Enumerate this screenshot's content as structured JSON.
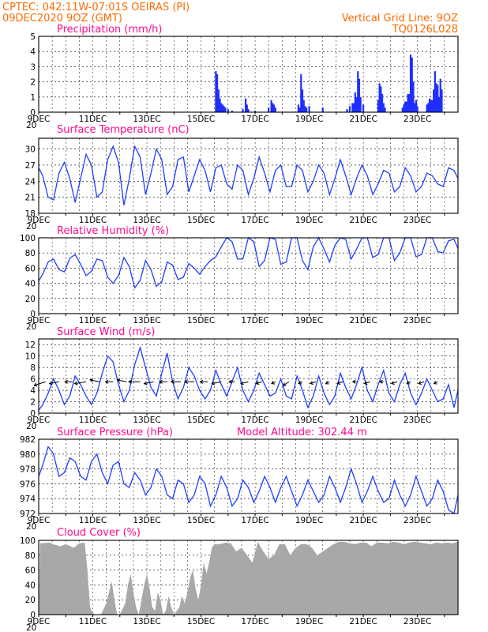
{
  "header": {
    "line1": "CPTEC:   042:11W-07:01S   OEIRAS (PI)",
    "line2": "09DEC2020 9OZ (GMT)",
    "right1": "Vertical Grid Line: 9OZ",
    "right2": "TQ0126L028"
  },
  "model_altitude_label": "Model Altitude: 302.44 m",
  "x_axis": {
    "labels": [
      "9DEC",
      "11DEC",
      "13DEC",
      "15DEC",
      "17DEC",
      "19DEC",
      "21DEC",
      "23DEC"
    ],
    "cut_label": "20"
  },
  "colors": {
    "line": "#1f3fff",
    "bar": "#1f2fff",
    "cloud": "#a8a8a8",
    "header": "#ff6a00",
    "title": "#ff0a8c",
    "grid": "#000000"
  },
  "chart_data": [
    {
      "id": "precip",
      "type": "bar",
      "title": "Precipitation (mm/h)",
      "ylim": [
        0,
        5
      ],
      "yticks": [
        0,
        1,
        2,
        3,
        4,
        5
      ],
      "x_range_days": [
        9,
        24.5
      ],
      "x": [
        15.55,
        15.6,
        15.65,
        15.7,
        15.75,
        15.8,
        15.85,
        15.9,
        16.0,
        16.15,
        16.55,
        16.65,
        16.7,
        16.75,
        17.0,
        17.5,
        17.6,
        17.65,
        17.7,
        17.75,
        18.6,
        18.65,
        18.7,
        18.75,
        18.8,
        18.85,
        18.9,
        19.0,
        19.5,
        20.4,
        20.5,
        20.6,
        20.65,
        20.7,
        20.75,
        20.8,
        20.85,
        20.9,
        21.0,
        21.55,
        21.6,
        21.65,
        21.7,
        21.75,
        21.8,
        22.45,
        22.5,
        22.55,
        22.6,
        22.65,
        22.7,
        22.75,
        22.8,
        22.85,
        22.9,
        22.95,
        23.0,
        23.35,
        23.4,
        23.45,
        23.5,
        23.55,
        23.6,
        23.65,
        23.7,
        23.75,
        23.8,
        23.85,
        23.9
      ],
      "values": [
        2.7,
        2.5,
        1.5,
        0.9,
        0.6,
        0.5,
        0.4,
        0.3,
        0.2,
        0.1,
        0.2,
        0.9,
        0.5,
        0.2,
        0.1,
        0.3,
        0.8,
        0.6,
        0.5,
        0.3,
        0.5,
        0.3,
        2.5,
        1.5,
        0.8,
        0.4,
        0.3,
        0.4,
        0.3,
        0.2,
        0.4,
        0.6,
        0.6,
        1.3,
        1.0,
        2.7,
        2.2,
        1.0,
        0.5,
        0.8,
        1.9,
        1.7,
        1.2,
        0.6,
        0.3,
        0.3,
        0.5,
        0.7,
        0.7,
        1.2,
        1.2,
        3.8,
        3.6,
        2.0,
        0.6,
        0.8,
        0.4,
        0.5,
        0.6,
        0.9,
        0.8,
        0.8,
        1.5,
        2.7,
        1.9,
        1.8,
        1.0,
        2.2,
        1.5
      ]
    },
    {
      "id": "temp",
      "type": "line",
      "title": "Surface Temperature (nC)",
      "ylim": [
        18,
        32
      ],
      "yticks": [
        18,
        21,
        24,
        27,
        30
      ],
      "x_range_days": [
        9,
        24.5
      ],
      "x": [
        9.0,
        9.15,
        9.35,
        9.55,
        9.75,
        9.95,
        10.15,
        10.35,
        10.55,
        10.75,
        10.95,
        11.15,
        11.35,
        11.55,
        11.75,
        11.95,
        12.15,
        12.35,
        12.55,
        12.75,
        12.95,
        13.15,
        13.35,
        13.55,
        13.75,
        13.95,
        14.15,
        14.35,
        14.55,
        14.75,
        14.95,
        15.15,
        15.35,
        15.55,
        15.75,
        15.95,
        16.15,
        16.35,
        16.55,
        16.75,
        16.95,
        17.15,
        17.35,
        17.55,
        17.75,
        17.95,
        18.15,
        18.35,
        18.55,
        18.75,
        18.95,
        19.15,
        19.35,
        19.55,
        19.75,
        19.95,
        20.15,
        20.35,
        20.55,
        20.75,
        20.95,
        21.15,
        21.35,
        21.55,
        21.75,
        21.95,
        22.15,
        22.35,
        22.55,
        22.75,
        22.95,
        23.15,
        23.35,
        23.55,
        23.75,
        23.95,
        24.15,
        24.35,
        24.5
      ],
      "values": [
        26.5,
        25.0,
        21.0,
        20.5,
        25.5,
        27.5,
        24.5,
        20.0,
        24.5,
        29.0,
        27.0,
        21.0,
        22.0,
        28.0,
        30.5,
        27.5,
        19.5,
        24.5,
        30.5,
        28.5,
        21.5,
        25.5,
        30.0,
        28.0,
        21.5,
        23.0,
        28.0,
        28.5,
        22.0,
        25.0,
        28.0,
        26.0,
        22.0,
        26.5,
        27.0,
        23.5,
        22.5,
        27.0,
        26.0,
        21.5,
        24.5,
        28.5,
        25.5,
        22.0,
        26.0,
        27.0,
        23.0,
        23.0,
        27.0,
        26.0,
        22.0,
        24.0,
        27.0,
        25.5,
        21.5,
        24.5,
        28.0,
        25.0,
        21.5,
        24.5,
        27.0,
        25.0,
        21.5,
        23.5,
        26.0,
        25.5,
        22.0,
        23.0,
        26.5,
        25.0,
        22.0,
        23.0,
        25.5,
        25.0,
        23.5,
        23.0,
        26.5,
        26.0,
        24.5
      ]
    },
    {
      "id": "rh",
      "type": "line",
      "title": "Relative Humidity (%)",
      "ylim": [
        0,
        100
      ],
      "yticks": [
        0,
        20,
        40,
        60,
        80,
        100
      ],
      "x_range_days": [
        9,
        24.5
      ],
      "x": [
        9.0,
        9.15,
        9.35,
        9.55,
        9.75,
        9.95,
        10.15,
        10.35,
        10.55,
        10.75,
        10.95,
        11.15,
        11.35,
        11.55,
        11.75,
        11.95,
        12.15,
        12.35,
        12.55,
        12.75,
        12.95,
        13.15,
        13.35,
        13.55,
        13.75,
        13.95,
        14.15,
        14.35,
        14.55,
        14.75,
        14.95,
        15.15,
        15.35,
        15.55,
        15.75,
        15.95,
        16.15,
        16.35,
        16.55,
        16.75,
        16.95,
        17.15,
        17.35,
        17.55,
        17.75,
        17.95,
        18.15,
        18.35,
        18.55,
        18.75,
        18.95,
        19.15,
        19.35,
        19.55,
        19.75,
        19.95,
        20.15,
        20.35,
        20.55,
        20.75,
        20.95,
        21.15,
        21.35,
        21.55,
        21.75,
        21.95,
        22.15,
        22.35,
        22.55,
        22.75,
        22.95,
        23.15,
        23.35,
        23.55,
        23.75,
        23.95,
        24.15,
        24.35,
        24.5
      ],
      "values": [
        43,
        52,
        68,
        72,
        58,
        55,
        73,
        78,
        65,
        50,
        56,
        72,
        70,
        48,
        40,
        50,
        74,
        62,
        34,
        44,
        70,
        58,
        36,
        42,
        68,
        64,
        45,
        48,
        66,
        60,
        52,
        62,
        70,
        75,
        88,
        100,
        95,
        72,
        72,
        100,
        95,
        62,
        70,
        100,
        98,
        65,
        68,
        100,
        100,
        70,
        58,
        88,
        100,
        85,
        68,
        90,
        100,
        98,
        72,
        85,
        100,
        100,
        74,
        78,
        100,
        100,
        70,
        80,
        100,
        100,
        75,
        78,
        100,
        100,
        82,
        80,
        96,
        98,
        86
      ]
    },
    {
      "id": "wind",
      "type": "line",
      "title": "Surface Wind (m/s)",
      "ylim": [
        0,
        13
      ],
      "yticks": [
        0,
        2,
        4,
        6,
        8,
        10,
        12
      ],
      "x_range_days": [
        9,
        24.5
      ],
      "x": [
        9.0,
        9.15,
        9.35,
        9.55,
        9.75,
        9.95,
        10.15,
        10.35,
        10.55,
        10.75,
        10.95,
        11.15,
        11.35,
        11.55,
        11.75,
        11.95,
        12.15,
        12.35,
        12.55,
        12.75,
        12.95,
        13.15,
        13.35,
        13.55,
        13.75,
        13.95,
        14.15,
        14.35,
        14.55,
        14.75,
        14.95,
        15.15,
        15.35,
        15.55,
        15.75,
        15.95,
        16.15,
        16.35,
        16.55,
        16.75,
        16.95,
        17.15,
        17.35,
        17.55,
        17.75,
        17.95,
        18.15,
        18.35,
        18.55,
        18.75,
        18.95,
        19.15,
        19.35,
        19.55,
        19.75,
        19.95,
        20.15,
        20.35,
        20.55,
        20.75,
        20.95,
        21.15,
        21.35,
        21.55,
        21.75,
        21.95,
        22.15,
        22.35,
        22.55,
        22.75,
        22.95,
        23.15,
        23.35,
        23.55,
        23.75,
        23.95,
        24.15,
        24.35,
        24.5
      ],
      "values": [
        0.5,
        1.5,
        3.5,
        6.0,
        4.0,
        1.5,
        3.0,
        6.5,
        5.0,
        3.0,
        1.5,
        3.5,
        7.0,
        10.0,
        9.0,
        5.0,
        2.0,
        4.0,
        8.5,
        11.5,
        8.0,
        4.5,
        3.0,
        7.0,
        10.5,
        5.5,
        2.5,
        4.5,
        8.0,
        6.5,
        4.0,
        2.5,
        4.0,
        7.5,
        5.0,
        3.0,
        5.5,
        8.0,
        4.0,
        2.0,
        4.0,
        7.0,
        5.0,
        3.0,
        3.5,
        6.0,
        3.0,
        2.5,
        6.5,
        4.0,
        1.0,
        3.0,
        6.5,
        3.5,
        1.5,
        3.0,
        7.0,
        4.5,
        2.5,
        5.0,
        8.0,
        4.0,
        2.0,
        5.0,
        7.5,
        3.5,
        2.0,
        5.0,
        7.0,
        3.5,
        1.5,
        3.5,
        6.0,
        4.0,
        2.0,
        2.5,
        5.0,
        1.0,
        4.0
      ],
      "vectors": {
        "x": [
          9.25,
          9.75,
          10.25,
          10.75,
          11.25,
          11.75,
          12.25,
          12.75,
          13.25,
          13.75,
          14.25,
          14.75,
          15.25,
          15.75,
          16.25,
          16.75,
          17.25,
          17.75,
          18.25,
          18.75,
          19.25,
          19.75,
          20.25,
          20.75,
          21.25,
          21.75,
          22.25,
          22.75,
          23.25,
          23.75
        ],
        "u": [
          -6,
          -5,
          -4,
          -6,
          -5,
          -4,
          -5,
          -6,
          -5,
          -4,
          -5,
          -5,
          -4,
          -5,
          -3,
          -4,
          -3,
          -2,
          -3,
          -2,
          -3,
          -2,
          -3,
          -2,
          -3,
          -2,
          -3,
          -2,
          -3,
          -2
        ],
        "v": [
          -2,
          -1,
          0,
          -1,
          1,
          0,
          1,
          0,
          -1,
          0,
          0,
          0,
          0,
          -1,
          0,
          -1,
          -1,
          -1,
          -2,
          -1,
          -1,
          -1,
          -1,
          0,
          -1,
          0,
          -1,
          -1,
          -1,
          -1
        ]
      }
    },
    {
      "id": "pressure",
      "type": "line",
      "title": "Surface Pressure (hPa)",
      "ylim": [
        972,
        982
      ],
      "yticks": [
        972,
        974,
        976,
        978,
        980,
        982
      ],
      "x_range_days": [
        9,
        24.5
      ],
      "x": [
        9.0,
        9.15,
        9.35,
        9.55,
        9.75,
        9.95,
        10.15,
        10.35,
        10.55,
        10.75,
        10.95,
        11.15,
        11.35,
        11.55,
        11.75,
        11.95,
        12.15,
        12.35,
        12.55,
        12.75,
        12.95,
        13.15,
        13.35,
        13.55,
        13.75,
        13.95,
        14.15,
        14.35,
        14.55,
        14.75,
        14.95,
        15.15,
        15.35,
        15.55,
        15.75,
        15.95,
        16.15,
        16.35,
        16.55,
        16.75,
        16.95,
        17.15,
        17.35,
        17.55,
        17.75,
        17.95,
        18.15,
        18.35,
        18.55,
        18.75,
        18.95,
        19.15,
        19.35,
        19.55,
        19.75,
        19.95,
        20.15,
        20.35,
        20.55,
        20.75,
        20.95,
        21.15,
        21.35,
        21.55,
        21.75,
        21.95,
        22.15,
        22.35,
        22.55,
        22.75,
        22.95,
        23.15,
        23.35,
        23.55,
        23.75,
        23.95,
        24.15,
        24.35,
        24.5
      ],
      "values": [
        977,
        978.5,
        981,
        980,
        977,
        977.5,
        979.5,
        979,
        977,
        976.5,
        979,
        980,
        977.5,
        976,
        978.5,
        979,
        976,
        975.5,
        977.5,
        976.5,
        974.5,
        975.5,
        978,
        977,
        974.5,
        974,
        976.5,
        976,
        973.5,
        974.5,
        977,
        976,
        973,
        974.5,
        977,
        975.5,
        973,
        974,
        976.5,
        975.5,
        973.5,
        975,
        977,
        975.5,
        973.5,
        975.5,
        977,
        975,
        973,
        974.5,
        976.5,
        975,
        973.5,
        974.5,
        977,
        975.5,
        973.5,
        975.5,
        978,
        976,
        973.5,
        975,
        977,
        975,
        973.5,
        974,
        976.5,
        974.5,
        973,
        974.5,
        977,
        975,
        973,
        974,
        976.5,
        975,
        972.5,
        972,
        974.5
      ]
    },
    {
      "id": "cloud",
      "type": "area",
      "title": "Cloud Cover (%)",
      "ylim": [
        0,
        100
      ],
      "yticks": [
        0,
        20,
        40,
        60,
        80,
        100
      ],
      "x_range_days": [
        9,
        24.5
      ],
      "x": [
        9.0,
        9.05,
        9.4,
        9.6,
        9.8,
        10.0,
        10.3,
        10.5,
        10.7,
        10.8,
        10.9,
        11.0,
        11.1,
        11.3,
        11.5,
        11.6,
        11.7,
        11.8,
        11.9,
        12.0,
        12.2,
        12.3,
        12.4,
        12.5,
        12.6,
        12.7,
        12.8,
        12.9,
        13.0,
        13.1,
        13.2,
        13.3,
        13.4,
        13.5,
        13.6,
        13.7,
        13.8,
        13.9,
        14.0,
        14.2,
        14.3,
        14.4,
        14.5,
        14.6,
        14.7,
        14.8,
        14.9,
        15.0,
        15.1,
        15.2,
        15.3,
        15.4,
        15.5,
        15.7,
        15.9,
        16.1,
        16.3,
        16.5,
        16.7,
        16.9,
        17.1,
        17.3,
        17.5,
        17.7,
        17.9,
        18.1,
        18.3,
        18.5,
        18.7,
        18.9,
        19.1,
        19.3,
        19.5,
        19.7,
        19.9,
        20.1,
        20.3,
        20.5,
        20.7,
        20.9,
        21.1,
        21.3,
        21.5,
        21.7,
        21.9,
        22.1,
        22.3,
        22.5,
        22.7,
        22.9,
        23.1,
        23.3,
        23.5,
        23.7,
        23.9,
        24.1,
        24.3,
        24.5
      ],
      "values": [
        0,
        96,
        97,
        94,
        92,
        95,
        90,
        96,
        97,
        60,
        10,
        2,
        0,
        0,
        15,
        30,
        45,
        20,
        0,
        0,
        15,
        40,
        55,
        30,
        10,
        0,
        20,
        40,
        55,
        35,
        10,
        5,
        30,
        20,
        0,
        5,
        25,
        10,
        0,
        10,
        25,
        15,
        30,
        50,
        60,
        35,
        20,
        40,
        70,
        55,
        70,
        90,
        95,
        95,
        97,
        96,
        85,
        90,
        80,
        70,
        98,
        85,
        75,
        80,
        95,
        95,
        80,
        90,
        95,
        95,
        90,
        80,
        85,
        90,
        95,
        98,
        98,
        96,
        95,
        97,
        97,
        92,
        97,
        97,
        96,
        98,
        97,
        95,
        97,
        98,
        97,
        96,
        95,
        97,
        96,
        97,
        96,
        98
      ]
    }
  ],
  "panel_tick_labels": {
    "precip": [
      "0",
      "1",
      "2",
      "3",
      "4",
      "5"
    ],
    "temp": [
      "18",
      "21",
      "24",
      "27",
      "30"
    ],
    "rh": [
      "0",
      "20",
      "40",
      "60",
      "80",
      "100"
    ],
    "wind": [
      "0",
      "2",
      "4",
      "6",
      "8",
      "10",
      "12"
    ],
    "pressure": [
      "972",
      "974",
      "976",
      "978",
      "980",
      "982"
    ],
    "cloud": [
      "0",
      "20",
      "40",
      "60",
      "80",
      "100"
    ]
  }
}
